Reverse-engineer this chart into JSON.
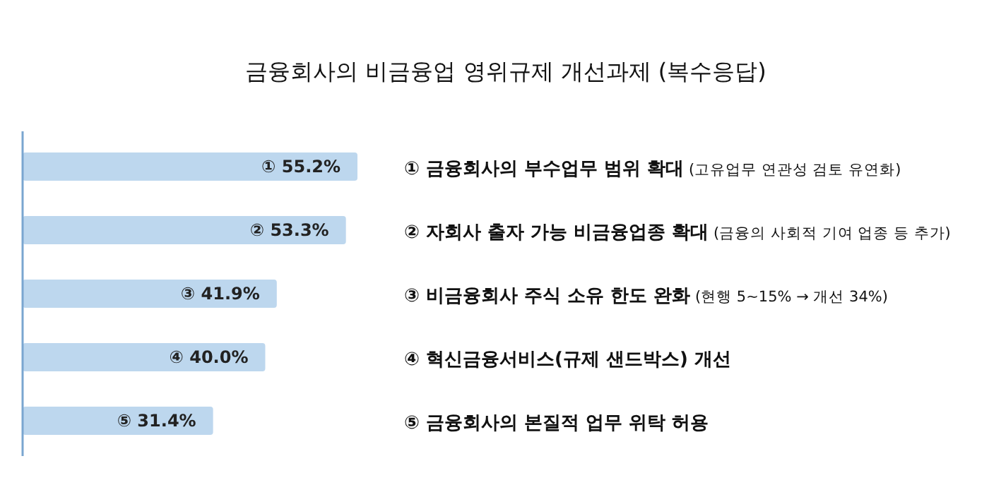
{
  "chart_data": {
    "type": "bar",
    "orientation": "horizontal",
    "title": "금융회사의 비금융업 영위규제 개선과제 (복수응답)",
    "categories": [
      "① 금융회사의 부수업무 범위 확대 (고유업무 연관성 검토 유연화)",
      "② 자회사 출자 가능 비금융업종 확대 (금융의 사회적 기여 업종 등 추가)",
      "③ 비금융회사 주식 소유 한도 완화 (현행 5~15% → 개선 34%)",
      "④ 혁신금융서비스(규제 샌드박스) 개선",
      "⑤ 금융회사의 본질적 업무 위탁 허용"
    ],
    "values": [
      55.2,
      53.3,
      41.9,
      40.0,
      31.4
    ],
    "value_labels": [
      "① 55.2%",
      "② 53.3%",
      "③ 41.9%",
      "④ 40.0%",
      "⑤ 31.4%"
    ],
    "color": "#bdd7ee"
  }
}
